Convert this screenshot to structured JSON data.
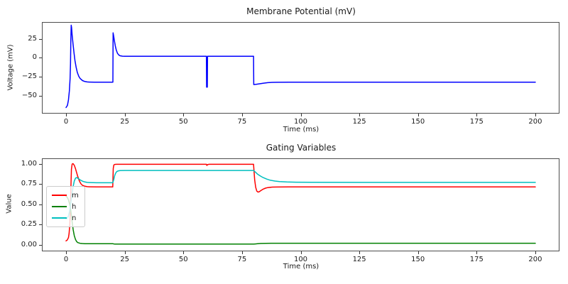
{
  "chart_data": [
    {
      "type": "line",
      "title": "Membrane Potential (mV)",
      "xlabel": "Time (ms)",
      "ylabel": "Voltage (mV)",
      "xlim": [
        -10,
        210
      ],
      "ylim": [
        -73,
        46.3
      ],
      "grid": false,
      "legend": null,
      "line_width": 1.5,
      "xticks": [
        0,
        25,
        50,
        75,
        100,
        125,
        150,
        175,
        200
      ],
      "xtick_labels": [
        "0",
        "25",
        "50",
        "75",
        "100",
        "125",
        "150",
        "175",
        "200"
      ],
      "yticks": [
        25,
        0,
        -25,
        -50
      ],
      "ytick_labels": [
        "25",
        "0",
        "−25",
        "−50"
      ],
      "series": [
        {
          "name": "V",
          "color": "#0000ff",
          "points": [
            [
              0,
              -66
            ],
            [
              0.6,
              -63
            ],
            [
              1,
              -56
            ],
            [
              1.4,
              -44
            ],
            [
              1.7,
              -28
            ],
            [
              1.9,
              -8
            ],
            [
              2.05,
              25
            ],
            [
              2.2,
              43
            ],
            [
              2.35,
              40
            ],
            [
              2.6,
              30
            ],
            [
              3,
              17
            ],
            [
              3.4,
              6
            ],
            [
              3.8,
              -4
            ],
            [
              4.3,
              -13
            ],
            [
              4.8,
              -19.5
            ],
            [
              5.4,
              -24.5
            ],
            [
              6,
              -27.5
            ],
            [
              7,
              -30.3
            ],
            [
              8,
              -31.5
            ],
            [
              9,
              -32
            ],
            [
              10,
              -32.2
            ],
            [
              12,
              -32.3
            ],
            [
              16,
              -32.3
            ],
            [
              19.95,
              -32.3
            ],
            [
              20.05,
              33
            ],
            [
              20.3,
              28.5
            ],
            [
              20.6,
              22.5
            ],
            [
              21,
              15.5
            ],
            [
              21.4,
              10
            ],
            [
              21.9,
              6
            ],
            [
              22.4,
              3.8
            ],
            [
              23,
              2.6
            ],
            [
              24,
              2.1
            ],
            [
              25,
              1.95
            ],
            [
              28,
              1.9
            ],
            [
              35,
              1.9
            ],
            [
              45,
              1.9
            ],
            [
              55,
              1.9
            ],
            [
              59.8,
              1.9
            ],
            [
              59.9,
              -39
            ],
            [
              60.2,
              -39
            ],
            [
              60.3,
              1.9
            ],
            [
              63,
              1.9
            ],
            [
              70,
              1.9
            ],
            [
              75,
              1.9
            ],
            [
              79.9,
              1.9
            ],
            [
              80,
              -35.5
            ],
            [
              81,
              -35.2
            ],
            [
              82.5,
              -34.5
            ],
            [
              84,
              -33.7
            ],
            [
              86,
              -33
            ],
            [
              88,
              -32.6
            ],
            [
              90,
              -32.5
            ],
            [
              95,
              -32.4
            ],
            [
              110,
              -32.4
            ],
            [
              150,
              -32.4
            ],
            [
              200,
              -32.4
            ]
          ]
        }
      ]
    },
    {
      "type": "line",
      "title": "Gating Variables",
      "xlabel": "Time (ms)",
      "ylabel": "Value",
      "xlim": [
        -10,
        210
      ],
      "ylim": [
        -0.07,
        1.057
      ],
      "grid": false,
      "legend": {
        "position": "center-left",
        "entries": [
          "m",
          "h",
          "n"
        ]
      },
      "line_width": 1.5,
      "xticks": [
        0,
        25,
        50,
        75,
        100,
        125,
        150,
        175,
        200
      ],
      "xtick_labels": [
        "0",
        "25",
        "50",
        "75",
        "100",
        "125",
        "150",
        "175",
        "200"
      ],
      "yticks": [
        1.0,
        0.75,
        0.5,
        0.25,
        0
      ],
      "ytick_labels": [
        "1.00",
        "0.75",
        "0.50",
        "0.25",
        "0.00"
      ],
      "series": [
        {
          "name": "m",
          "color": "#ff0000",
          "points": [
            [
              0,
              0.05
            ],
            [
              0.5,
              0.06
            ],
            [
              1,
              0.09
            ],
            [
              1.3,
              0.14
            ],
            [
              1.6,
              0.25
            ],
            [
              1.9,
              0.5
            ],
            [
              2.1,
              0.75
            ],
            [
              2.3,
              0.93
            ],
            [
              2.6,
              0.995
            ],
            [
              3,
              1.0
            ],
            [
              3.5,
              0.98
            ],
            [
              4,
              0.94
            ],
            [
              4.5,
              0.89
            ],
            [
              5,
              0.84
            ],
            [
              5.5,
              0.8
            ],
            [
              6,
              0.768
            ],
            [
              6.5,
              0.747
            ],
            [
              7,
              0.734
            ],
            [
              8,
              0.722
            ],
            [
              9,
              0.717
            ],
            [
              10,
              0.715
            ],
            [
              13,
              0.714
            ],
            [
              19.9,
              0.714
            ],
            [
              20.1,
              0.94
            ],
            [
              20.35,
              0.982
            ],
            [
              20.7,
              0.991
            ],
            [
              21.5,
              0.992
            ],
            [
              30,
              0.992
            ],
            [
              45,
              0.992
            ],
            [
              59.8,
              0.992
            ],
            [
              60,
              0.978
            ],
            [
              60.4,
              0.99
            ],
            [
              61,
              0.992
            ],
            [
              70,
              0.992
            ],
            [
              79.9,
              0.992
            ],
            [
              80.1,
              0.92
            ],
            [
              80.4,
              0.8
            ],
            [
              80.8,
              0.71
            ],
            [
              81.3,
              0.662
            ],
            [
              81.8,
              0.651
            ],
            [
              82.3,
              0.654
            ],
            [
              83,
              0.668
            ],
            [
              84,
              0.687
            ],
            [
              85,
              0.699
            ],
            [
              86,
              0.706
            ],
            [
              88,
              0.712
            ],
            [
              90,
              0.713
            ],
            [
              95,
              0.714
            ],
            [
              120,
              0.714
            ],
            [
              200,
              0.714
            ]
          ]
        },
        {
          "name": "h",
          "color": "#008000",
          "points": [
            [
              0,
              0.6
            ],
            [
              0.5,
              0.587
            ],
            [
              1,
              0.556
            ],
            [
              1.5,
              0.505
            ],
            [
              2,
              0.425
            ],
            [
              2.5,
              0.305
            ],
            [
              3,
              0.19
            ],
            [
              3.5,
              0.115
            ],
            [
              4,
              0.068
            ],
            [
              4.5,
              0.042
            ],
            [
              5,
              0.029
            ],
            [
              6,
              0.02
            ],
            [
              7,
              0.017
            ],
            [
              8,
              0.016
            ],
            [
              12,
              0.0155
            ],
            [
              19.9,
              0.0155
            ],
            [
              20.4,
              0.0125
            ],
            [
              21,
              0.0108
            ],
            [
              22,
              0.0102
            ],
            [
              25,
              0.01
            ],
            [
              40,
              0.01
            ],
            [
              60,
              0.01
            ],
            [
              79.9,
              0.01
            ],
            [
              80.6,
              0.0125
            ],
            [
              81.6,
              0.015
            ],
            [
              83,
              0.018
            ],
            [
              85,
              0.0196
            ],
            [
              88,
              0.0206
            ],
            [
              92,
              0.021
            ],
            [
              110,
              0.021
            ],
            [
              200,
              0.021
            ]
          ]
        },
        {
          "name": "n",
          "color": "#00bfbf",
          "points": [
            [
              0,
              0.32
            ],
            [
              0.5,
              0.328
            ],
            [
              1,
              0.355
            ],
            [
              1.5,
              0.415
            ],
            [
              2,
              0.515
            ],
            [
              2.5,
              0.625
            ],
            [
              3,
              0.718
            ],
            [
              3.5,
              0.785
            ],
            [
              4,
              0.82
            ],
            [
              4.4,
              0.829
            ],
            [
              4.8,
              0.825
            ],
            [
              5.3,
              0.815
            ],
            [
              6,
              0.8
            ],
            [
              7,
              0.784
            ],
            [
              8,
              0.775
            ],
            [
              9,
              0.77
            ],
            [
              10,
              0.768
            ],
            [
              13,
              0.765
            ],
            [
              19.9,
              0.765
            ],
            [
              20.3,
              0.8
            ],
            [
              20.7,
              0.849
            ],
            [
              21.1,
              0.882
            ],
            [
              21.6,
              0.902
            ],
            [
              22.2,
              0.911
            ],
            [
              23,
              0.915
            ],
            [
              25,
              0.916
            ],
            [
              40,
              0.916
            ],
            [
              60,
              0.916
            ],
            [
              79.9,
              0.916
            ],
            [
              80.6,
              0.899
            ],
            [
              81.6,
              0.872
            ],
            [
              82.8,
              0.848
            ],
            [
              84,
              0.829
            ],
            [
              85.5,
              0.811
            ],
            [
              87,
              0.797
            ],
            [
              89,
              0.786
            ],
            [
              91,
              0.78
            ],
            [
              94,
              0.775
            ],
            [
              98,
              0.772
            ],
            [
              105,
              0.771
            ],
            [
              130,
              0.77
            ],
            [
              200,
              0.77
            ]
          ]
        }
      ]
    }
  ]
}
